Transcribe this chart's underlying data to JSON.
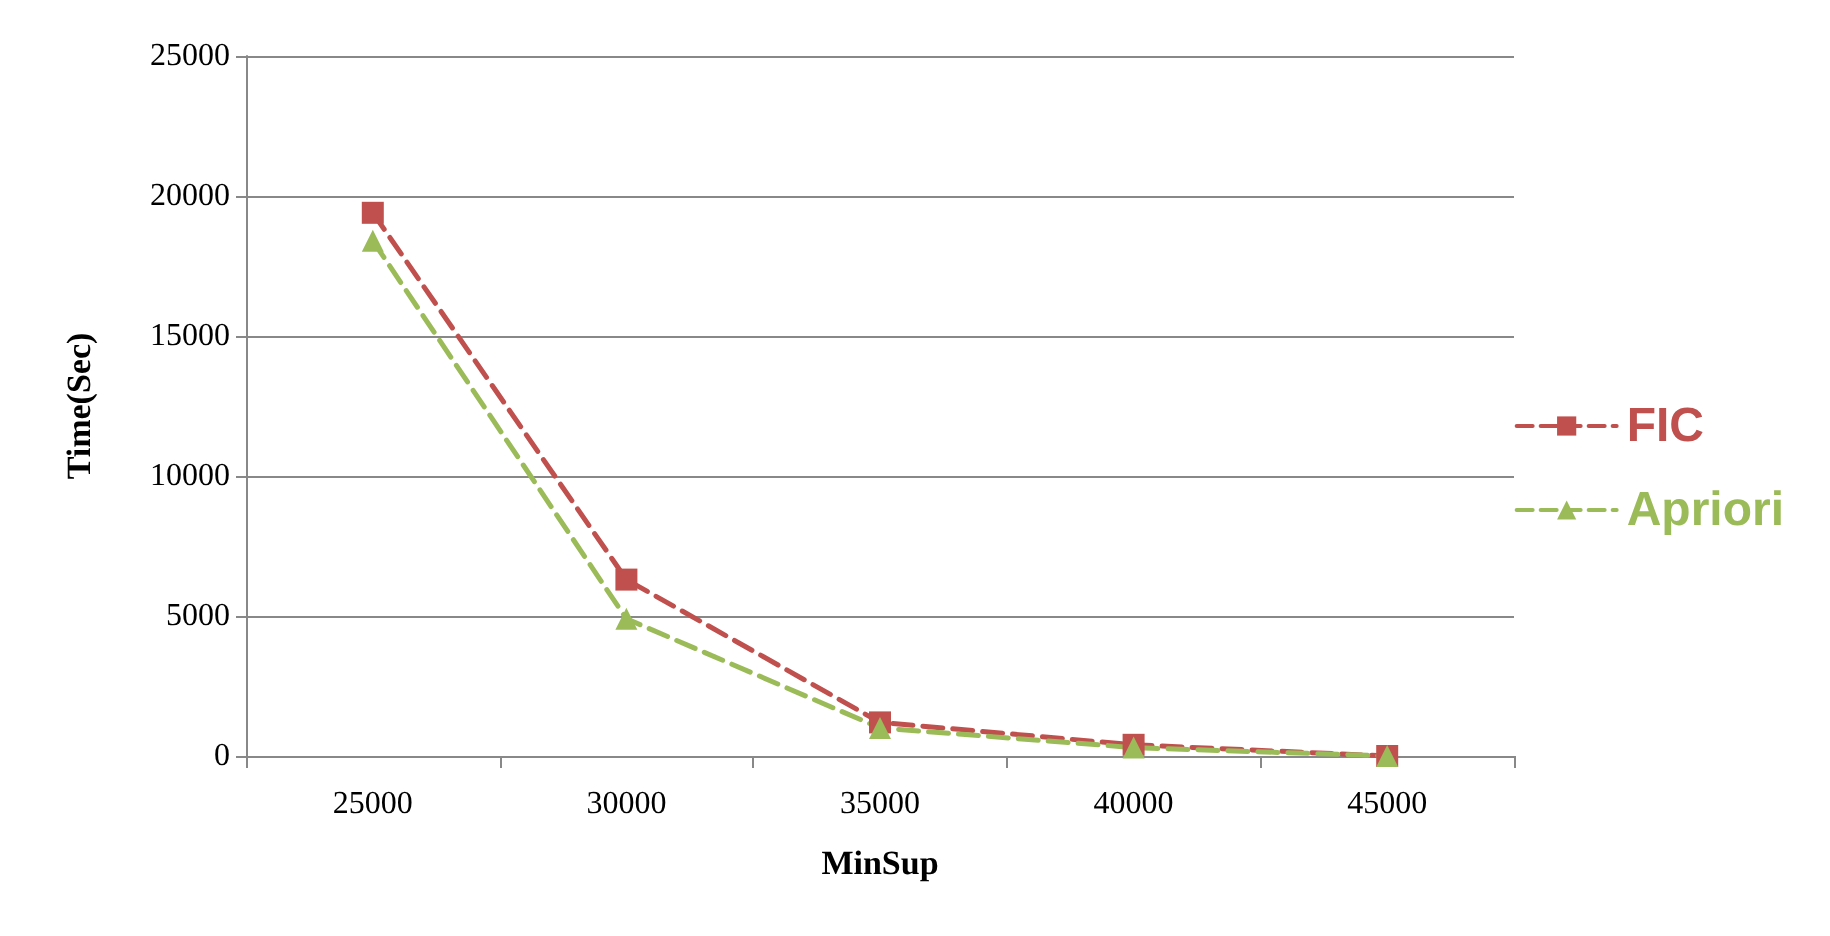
{
  "chart_data": {
    "type": "line",
    "xlabel": "MinSup",
    "ylabel": "Time(Sec)",
    "categories": [
      "25000",
      "30000",
      "35000",
      "40000",
      "45000"
    ],
    "series": [
      {
        "name": "FIC",
        "color": "#c0504d",
        "marker": "square",
        "values": [
          19400,
          6300,
          1200,
          400,
          0
        ]
      },
      {
        "name": "Apriori",
        "color": "#9bbb59",
        "marker": "triangle",
        "values": [
          18400,
          4900,
          1000,
          300,
          0
        ]
      }
    ],
    "ylim": [
      0,
      25000
    ],
    "yticks": [
      0,
      5000,
      10000,
      15000,
      20000,
      25000
    ],
    "grid": "y",
    "legend": "right",
    "line_style": "dashed"
  }
}
